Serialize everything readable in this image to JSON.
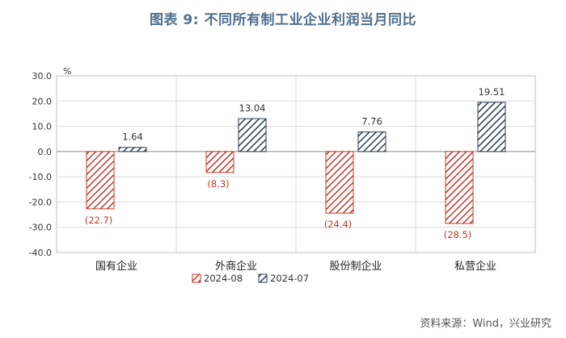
{
  "title": "图表 9:  不同所有制工业企业利润当月同比",
  "source": "资料来源：Wind，兴业研究",
  "chart_data": {
    "type": "bar",
    "categories": [
      "国有企业",
      "外商企业",
      "股份制企业",
      "私营企业"
    ],
    "series": [
      {
        "name": "2024-08",
        "values": [
          -22.7,
          -8.3,
          -24.4,
          -28.5
        ],
        "labels": [
          "(22.7)",
          "(8.3)",
          "(24.4)",
          "(28.5)"
        ],
        "color": "#c0392b",
        "pattern": "hatch-red"
      },
      {
        "name": "2024-07",
        "values": [
          1.64,
          13.04,
          7.76,
          19.51
        ],
        "labels": [
          "1.64",
          "13.04",
          "7.76",
          "19.51"
        ],
        "color": "#2c3e50",
        "pattern": "hatch-dark"
      }
    ],
    "y_unit": "%",
    "ylim": [
      -40,
      30
    ],
    "yticks": [
      "30.0",
      "20.0",
      "10.0",
      "0.0",
      "-10.0",
      "-20.0",
      "-30.0",
      "-40.0"
    ],
    "ytick_values": [
      30,
      20,
      10,
      0,
      -10,
      -20,
      -30,
      -40
    ],
    "grid": true,
    "legend_position": "bottom"
  }
}
